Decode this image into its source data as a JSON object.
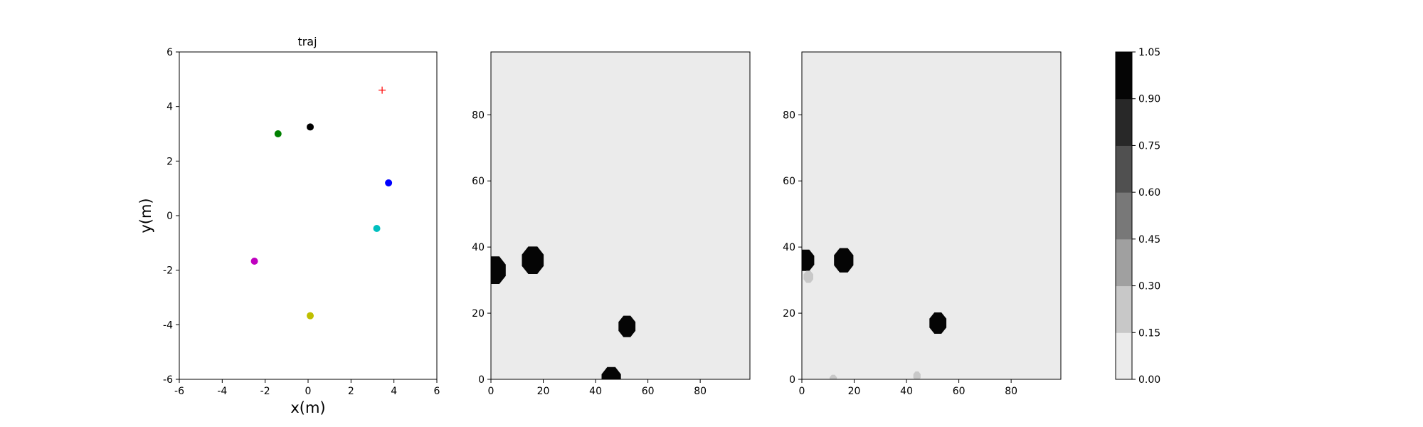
{
  "chart_data": [
    {
      "type": "scatter",
      "title": "traj",
      "xlabel": "x(m)",
      "ylabel": "y(m)",
      "xlim": [
        -6,
        6
      ],
      "ylim": [
        -6,
        6
      ],
      "xticks": [
        "-6",
        "-4",
        "-2",
        "0",
        "2",
        "4",
        "6"
      ],
      "yticks": [
        "-6",
        "-4",
        "-2",
        "0",
        "2",
        "4",
        "6"
      ],
      "grid": false,
      "points": [
        {
          "x": 0.1,
          "y": 3.25,
          "color": "#000000",
          "marker": "circle"
        },
        {
          "x": -1.4,
          "y": 3.0,
          "color": "#008000",
          "marker": "circle"
        },
        {
          "x": 3.75,
          "y": 1.2,
          "color": "#0000ff",
          "marker": "circle"
        },
        {
          "x": 3.2,
          "y": -0.47,
          "color": "#00bfbf",
          "marker": "circle"
        },
        {
          "x": -2.5,
          "y": -1.67,
          "color": "#bf00bf",
          "marker": "circle"
        },
        {
          "x": 0.1,
          "y": -3.67,
          "color": "#bfbf00",
          "marker": "circle"
        },
        {
          "x": 3.45,
          "y": 4.6,
          "color": "#ff0000",
          "marker": "plus"
        }
      ]
    },
    {
      "type": "heatmap",
      "xlim": [
        0,
        99
      ],
      "ylim": [
        0,
        99
      ],
      "xticks": [
        "0",
        "20",
        "40",
        "60",
        "80"
      ],
      "yticks": [
        "0",
        "20",
        "40",
        "60",
        "80"
      ],
      "background_value": 0.05,
      "blobs": [
        {
          "x": 1.5,
          "y": 33,
          "r": 4.5,
          "value": 1.0
        },
        {
          "x": 16,
          "y": 36,
          "r": 4.5,
          "value": 1.0
        },
        {
          "x": 52,
          "y": 16,
          "r": 3.5,
          "value": 1.0
        },
        {
          "x": 46,
          "y": 0,
          "r": 4,
          "value": 1.0
        }
      ]
    },
    {
      "type": "heatmap",
      "xlim": [
        0,
        99
      ],
      "ylim": [
        0,
        99
      ],
      "xticks": [
        "0",
        "20",
        "40",
        "60",
        "80"
      ],
      "yticks": [
        "0",
        "20",
        "40",
        "60",
        "80"
      ],
      "background_value": 0.05,
      "blobs": [
        {
          "x": 1.5,
          "y": 36,
          "r": 3.5,
          "value": 1.0
        },
        {
          "x": 2.5,
          "y": 31,
          "r": 2,
          "value": 0.25
        },
        {
          "x": 16,
          "y": 36,
          "r": 4,
          "value": 1.0
        },
        {
          "x": 52,
          "y": 17,
          "r": 3.5,
          "value": 1.0
        },
        {
          "x": 12,
          "y": 0,
          "r": 1.5,
          "value": 0.2
        },
        {
          "x": 44,
          "y": 1,
          "r": 1.5,
          "value": 0.2
        }
      ]
    }
  ],
  "colorbar": {
    "ticks": [
      "0.00",
      "0.15",
      "0.30",
      "0.45",
      "0.60",
      "0.75",
      "0.90",
      "1.05"
    ],
    "colors": [
      "#ebebeb",
      "#c8c8c8",
      "#a0a0a0",
      "#787878",
      "#505050",
      "#282828",
      "#050505"
    ]
  }
}
